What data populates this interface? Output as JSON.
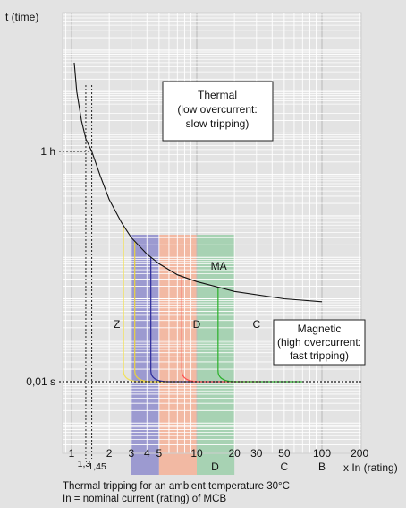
{
  "chart_data": {
    "type": "line",
    "x_scale": "log",
    "y_scale": "log",
    "grid": true,
    "ylabel": "t (time)",
    "xlabel": "x In (rating)",
    "y_ticks": [
      {
        "value": 3600,
        "label": "1 h"
      },
      {
        "value": 0.01,
        "label": "0,01 s"
      }
    ],
    "x_ticks": [
      {
        "value": 1,
        "label": "1"
      },
      {
        "value": 2,
        "label": "2"
      },
      {
        "value": 3,
        "label": "3"
      },
      {
        "value": 4,
        "label": "4"
      },
      {
        "value": 5,
        "label": "5"
      },
      {
        "value": 10,
        "label": "10"
      },
      {
        "value": 20,
        "label": "20"
      },
      {
        "value": 30,
        "label": "30"
      },
      {
        "value": 50,
        "label": "50"
      },
      {
        "value": 100,
        "label": "100"
      },
      {
        "value": 200,
        "label": "200"
      }
    ],
    "x_sub_labels": [
      {
        "value": 1.3,
        "label": "1,3"
      },
      {
        "value": 1.45,
        "label": "1,45"
      }
    ],
    "thermal_curve": {
      "name": "MA",
      "points": [
        [
          1.05,
          500000
        ],
        [
          1.1,
          100000
        ],
        [
          1.2,
          20000
        ],
        [
          1.3,
          7200
        ],
        [
          1.45,
          3600
        ],
        [
          1.7,
          900
        ],
        [
          2,
          250
        ],
        [
          2.5,
          70
        ],
        [
          3,
          30
        ],
        [
          4,
          12
        ],
        [
          5,
          7
        ],
        [
          7,
          3.8
        ],
        [
          10,
          2.6
        ],
        [
          20,
          1.5
        ],
        [
          50,
          1.0
        ],
        [
          100,
          0.85
        ]
      ]
    },
    "magnetic_curves": [
      {
        "name": "Z",
        "color": "#f2e15a",
        "trip": 2.6
      },
      {
        "name": "B",
        "color": "#ead23a",
        "trip": 3.2
      },
      {
        "name": "B",
        "color": "#2a2a9a",
        "trip": 4.3
      },
      {
        "name": "C",
        "color": "#ff5050",
        "trip": 7.6
      },
      {
        "name": "D",
        "color": "#2ab02a",
        "trip": 14.8
      }
    ],
    "bands": [
      {
        "name": "B",
        "from": 3,
        "to": 5,
        "color": "#9c9ad0"
      },
      {
        "name": "C",
        "from": 5,
        "to": 10,
        "color": "#f2b9a3"
      },
      {
        "name": "D",
        "from": 10,
        "to": 20,
        "color": "#a7d2b3"
      }
    ],
    "curve_labels": [
      {
        "text": "MA",
        "x": 15,
        "y": 5
      },
      {
        "text": "Z",
        "x": 2.3,
        "y": 0.2
      },
      {
        "text": "D",
        "x": 10,
        "y": 0.2
      },
      {
        "text": "C",
        "x": 30,
        "y": 0.2
      },
      {
        "text": "B",
        "x": 100,
        "y": 0.16
      }
    ],
    "band_labels": [
      {
        "text": "D",
        "x": 14
      },
      {
        "text": "C",
        "x": 50
      },
      {
        "text": "B",
        "x": 100
      }
    ],
    "annotations": {
      "thermal": [
        "Thermal",
        "(low overcurrent:",
        "slow tripping)"
      ],
      "magnetic": [
        "Magnetic",
        "(high overcurrent:",
        "fast tripping)"
      ]
    },
    "footnote": [
      "Thermal tripping for an ambient temperature 30°C",
      "In = nominal current (rating) of MCB"
    ]
  }
}
